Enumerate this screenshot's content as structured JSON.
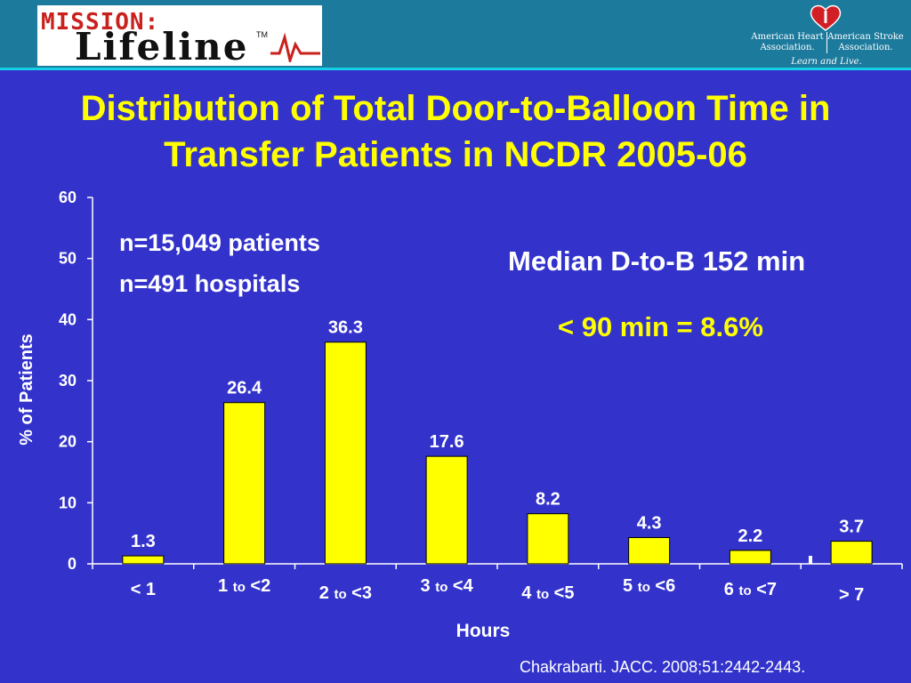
{
  "header": {
    "logo_top": "MISSION:",
    "logo_main": "Lifeline",
    "logo_tm": "TM",
    "org_left": "American Heart Association.",
    "org_right": "American Stroke Association.",
    "tagline": "Learn and Live."
  },
  "title_line1": "Distribution of Total Door-to-Balloon Time in",
  "title_line2": "Transfer Patients in NCDR 2005-06",
  "annotations": {
    "n_patients": "n=15,049 patients",
    "n_hospitals": "n=491 hospitals",
    "median": "Median D-to-B 152 min",
    "under_90": "< 90 min = 8.6%"
  },
  "citation": "Chakrabarti. JACC. 2008;51:2442-2443.",
  "colors": {
    "background": "#3333cc",
    "bar": "#ffff00",
    "text": "#ffffff",
    "title": "#ffff00"
  },
  "chart_data": {
    "type": "bar",
    "title": "Distribution of Total Door-to-Balloon Time in Transfer Patients in NCDR 2005-06",
    "xlabel": "Hours",
    "ylabel": "% of Patients",
    "ylim": [
      0,
      60
    ],
    "yticks": [
      0,
      10,
      20,
      30,
      40,
      50,
      60
    ],
    "categories": [
      {
        "a": "< 1",
        "b": "",
        "c": ""
      },
      {
        "a": "1 ",
        "b": "to",
        "c": " <2"
      },
      {
        "a": "2 ",
        "b": "to",
        "c": " <3"
      },
      {
        "a": "3 ",
        "b": "to",
        "c": " <4"
      },
      {
        "a": "4 ",
        "b": "to",
        "c": " <5"
      },
      {
        "a": "5 ",
        "b": "to",
        "c": " <6"
      },
      {
        "a": "6 ",
        "b": "to",
        "c": " <7"
      },
      {
        "a": "> 7",
        "b": "",
        "c": ""
      }
    ],
    "values": [
      1.3,
      26.4,
      36.3,
      17.6,
      8.2,
      4.3,
      2.2,
      3.7
    ],
    "data_labels": [
      "1.3",
      "26.4",
      "36.3",
      "17.6",
      "8.2",
      "4.3",
      "2.2",
      "3.7"
    ],
    "grid": false,
    "legend": "none"
  }
}
